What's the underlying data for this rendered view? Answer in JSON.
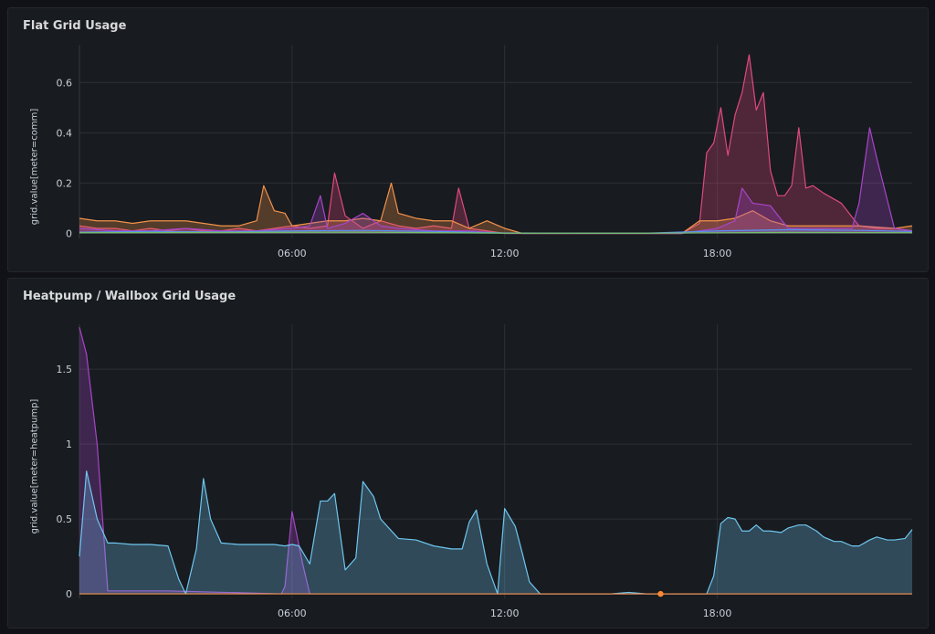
{
  "chart_data": [
    {
      "type": "area",
      "title": "Flat Grid Usage",
      "ylabel": "grid.value[meter=comm]",
      "xlabel": "",
      "x_unit": "hour of day",
      "xlim": [
        0,
        23.5
      ],
      "ylim": [
        -0.02,
        0.75
      ],
      "x_ticks": [
        {
          "v": 6,
          "label": "06:00"
        },
        {
          "v": 12,
          "label": "12:00"
        },
        {
          "v": 18,
          "label": "18:00"
        }
      ],
      "y_ticks": [
        {
          "v": 0,
          "label": "0"
        },
        {
          "v": 0.2,
          "label": "0.2"
        },
        {
          "v": 0.4,
          "label": "0.4"
        },
        {
          "v": 0.6,
          "label": "0.6"
        }
      ],
      "grid": true,
      "series": [
        {
          "color": "#e0497e",
          "x": [
            0,
            0.5,
            1,
            1.5,
            2,
            2.5,
            3,
            3.5,
            4,
            4.5,
            5,
            5.5,
            6,
            6.5,
            7,
            7.2,
            7.5,
            8,
            8.5,
            9,
            9.5,
            10,
            10.5,
            10.7,
            11,
            11.5,
            12,
            12.5,
            13,
            14,
            15,
            16,
            17,
            17.5,
            17.7,
            17.9,
            18.1,
            18.3,
            18.5,
            18.7,
            18.9,
            19.1,
            19.3,
            19.5,
            19.7,
            19.9,
            20.1,
            20.3,
            20.5,
            20.7,
            21,
            21.5,
            22,
            22.5,
            23,
            23.5
          ],
          "y": [
            0.03,
            0.02,
            0.02,
            0.01,
            0.02,
            0.01,
            0.02,
            0.01,
            0.01,
            0.02,
            0.01,
            0.02,
            0.03,
            0.02,
            0.03,
            0.24,
            0.07,
            0.02,
            0.05,
            0.03,
            0.02,
            0.03,
            0.02,
            0.18,
            0.02,
            0.01,
            0,
            0,
            0,
            0,
            0,
            0,
            0,
            0.04,
            0.32,
            0.36,
            0.5,
            0.31,
            0.47,
            0.56,
            0.71,
            0.49,
            0.56,
            0.25,
            0.15,
            0.15,
            0.19,
            0.42,
            0.18,
            0.19,
            0.16,
            0.12,
            0.03,
            0.02,
            0.02,
            0.01
          ]
        },
        {
          "color": "#f2924a",
          "x": [
            0,
            0.5,
            1,
            1.5,
            2,
            2.5,
            3,
            3.5,
            4,
            4.5,
            5,
            5.2,
            5.5,
            5.8,
            6,
            6.5,
            7,
            7.5,
            8,
            8.5,
            8.8,
            9,
            9.5,
            10,
            10.5,
            11,
            11.5,
            12,
            12.5,
            13,
            14,
            15,
            16,
            17,
            17.5,
            18,
            18.5,
            19,
            19.5,
            20,
            21,
            22,
            23,
            23.5
          ],
          "y": [
            0.06,
            0.05,
            0.05,
            0.04,
            0.05,
            0.05,
            0.05,
            0.04,
            0.03,
            0.03,
            0.05,
            0.19,
            0.09,
            0.08,
            0.03,
            0.04,
            0.05,
            0.05,
            0.06,
            0.05,
            0.2,
            0.08,
            0.06,
            0.05,
            0.05,
            0.02,
            0.05,
            0.02,
            0,
            0,
            0,
            0,
            0,
            0,
            0.05,
            0.05,
            0.06,
            0.09,
            0.05,
            0.03,
            0.03,
            0.03,
            0.02,
            0.03
          ]
        },
        {
          "color": "#a646c8",
          "x": [
            0,
            1,
            2,
            3,
            4,
            5,
            6,
            6.5,
            6.8,
            7,
            7.5,
            8,
            8.5,
            9,
            10,
            11,
            12,
            13,
            17,
            18,
            18.5,
            18.7,
            19,
            19.5,
            20,
            21,
            21.8,
            22,
            22.3,
            22.5,
            23,
            23.5
          ],
          "y": [
            0.02,
            0.01,
            0.01,
            0.02,
            0.01,
            0.01,
            0.02,
            0.03,
            0.15,
            0.02,
            0.04,
            0.08,
            0.03,
            0.02,
            0.01,
            0.01,
            0,
            0,
            0,
            0.02,
            0.05,
            0.18,
            0.12,
            0.11,
            0.02,
            0.02,
            0.02,
            0.12,
            0.42,
            0.3,
            0.02,
            0.01
          ]
        },
        {
          "color": "#5794f2",
          "x": [
            0,
            2,
            4,
            6,
            8,
            10,
            12,
            14,
            16,
            18,
            20,
            22,
            23.5
          ],
          "y": [
            0.005,
            0.008,
            0.006,
            0.01,
            0.012,
            0.008,
            0.002,
            0.001,
            0.001,
            0.01,
            0.015,
            0.012,
            0.008
          ]
        },
        {
          "color": "#73bf69",
          "x": [
            0,
            4,
            8,
            12,
            16,
            20,
            23.5
          ],
          "y": [
            0.003,
            0.004,
            0.005,
            0.001,
            0.001,
            0.004,
            0.003
          ]
        }
      ]
    },
    {
      "type": "area",
      "title": "Heatpump / Wallbox Grid Usage",
      "ylabel": "grid.value[meter=heatpump]",
      "xlabel": "",
      "x_unit": "hour of day",
      "xlim": [
        0,
        23.5
      ],
      "ylim": [
        -0.03,
        1.8
      ],
      "x_ticks": [
        {
          "v": 6,
          "label": "06:00"
        },
        {
          "v": 12,
          "label": "12:00"
        },
        {
          "v": 18,
          "label": "18:00"
        }
      ],
      "y_ticks": [
        {
          "v": 0,
          "label": "0"
        },
        {
          "v": 0.5,
          "label": "0.5"
        },
        {
          "v": 1,
          "label": "1"
        },
        {
          "v": 1.5,
          "label": "1.5"
        }
      ],
      "grid": true,
      "series": [
        {
          "color": "#a646c8",
          "x": [
            0,
            0.2,
            0.5,
            0.8,
            1,
            1.5,
            2,
            2.5,
            5.7,
            5.8,
            6,
            6.3,
            6.5,
            6.8,
            7,
            10,
            20,
            23.5
          ],
          "y": [
            1.78,
            1.6,
            1,
            0.02,
            0.02,
            0.02,
            0.02,
            0.02,
            0,
            0.05,
            0.55,
            0.2,
            0,
            0,
            0,
            0,
            0,
            0
          ]
        },
        {
          "color": "#6ec6f0",
          "x": [
            0,
            0.2,
            0.5,
            0.8,
            1,
            1.5,
            2,
            2.5,
            2.8,
            3,
            3.3,
            3.5,
            3.7,
            4,
            4.5,
            5,
            5.5,
            5.8,
            6,
            6.2,
            6.5,
            6.8,
            7,
            7.2,
            7.5,
            7.8,
            8,
            8.3,
            8.5,
            9,
            9.5,
            10,
            10.5,
            10.8,
            11,
            11.2,
            11.5,
            11.8,
            12,
            12.3,
            12.5,
            12.7,
            13,
            14,
            15,
            15.5,
            16,
            17,
            17.5,
            17.7,
            17.9,
            18.1,
            18.3,
            18.5,
            18.7,
            18.9,
            19.1,
            19.3,
            19.5,
            19.8,
            20,
            20.3,
            20.5,
            20.8,
            21,
            21.3,
            21.5,
            21.8,
            22,
            22.3,
            22.5,
            22.8,
            23,
            23.3,
            23.5
          ],
          "y": [
            0.25,
            0.82,
            0.5,
            0.34,
            0.34,
            0.33,
            0.33,
            0.32,
            0.1,
            0,
            0.3,
            0.77,
            0.5,
            0.34,
            0.33,
            0.33,
            0.33,
            0.32,
            0.33,
            0.32,
            0.2,
            0.62,
            0.62,
            0.67,
            0.16,
            0.24,
            0.75,
            0.65,
            0.5,
            0.37,
            0.36,
            0.32,
            0.3,
            0.3,
            0.48,
            0.56,
            0.2,
            0,
            0.57,
            0.45,
            0.27,
            0.08,
            0,
            0,
            0,
            0.01,
            0,
            0,
            0,
            0,
            0.12,
            0.47,
            0.51,
            0.5,
            0.42,
            0.42,
            0.46,
            0.42,
            0.42,
            0.41,
            0.44,
            0.46,
            0.46,
            0.42,
            0.38,
            0.35,
            0.35,
            0.32,
            0.32,
            0.36,
            0.38,
            0.36,
            0.36,
            0.37,
            0.43
          ]
        },
        {
          "color": "#f2924a",
          "x": [
            0,
            23.5
          ],
          "y": [
            0,
            0
          ]
        }
      ],
      "annotations": [
        {
          "type": "point",
          "x": 16.4,
          "y": 0,
          "color": "#ff8833"
        }
      ]
    }
  ]
}
